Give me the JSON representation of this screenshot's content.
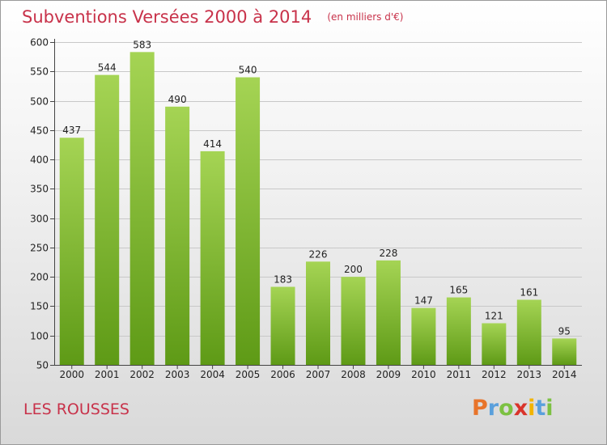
{
  "header": {
    "title": "Subventions Versées 2000 à 2014",
    "subtitle": "(en milliers d'€)"
  },
  "footer": {
    "commune": "LES ROUSSES",
    "logo": {
      "letters": [
        "P",
        "r",
        "o",
        "x",
        "i",
        "t",
        "i"
      ],
      "colors": [
        "#e8742a",
        "#5aa0dc",
        "#7cc142",
        "#d9342b",
        "#f2b400",
        "#5aa0dc",
        "#7cc142"
      ]
    }
  },
  "chart_data": {
    "type": "bar",
    "categories": [
      "2000",
      "2001",
      "2002",
      "2003",
      "2004",
      "2005",
      "2006",
      "2007",
      "2008",
      "2009",
      "2010",
      "2011",
      "2012",
      "2013",
      "2014"
    ],
    "values": [
      437,
      544,
      583,
      490,
      414,
      540,
      183,
      226,
      200,
      228,
      147,
      165,
      121,
      161,
      95
    ],
    "ylim": [
      50,
      600
    ],
    "yticks": [
      50,
      100,
      150,
      200,
      250,
      300,
      350,
      400,
      450,
      500,
      550,
      600
    ],
    "grid": true,
    "bar_color_top": "#a5d454",
    "bar_color_bottom": "#5e9a16"
  }
}
